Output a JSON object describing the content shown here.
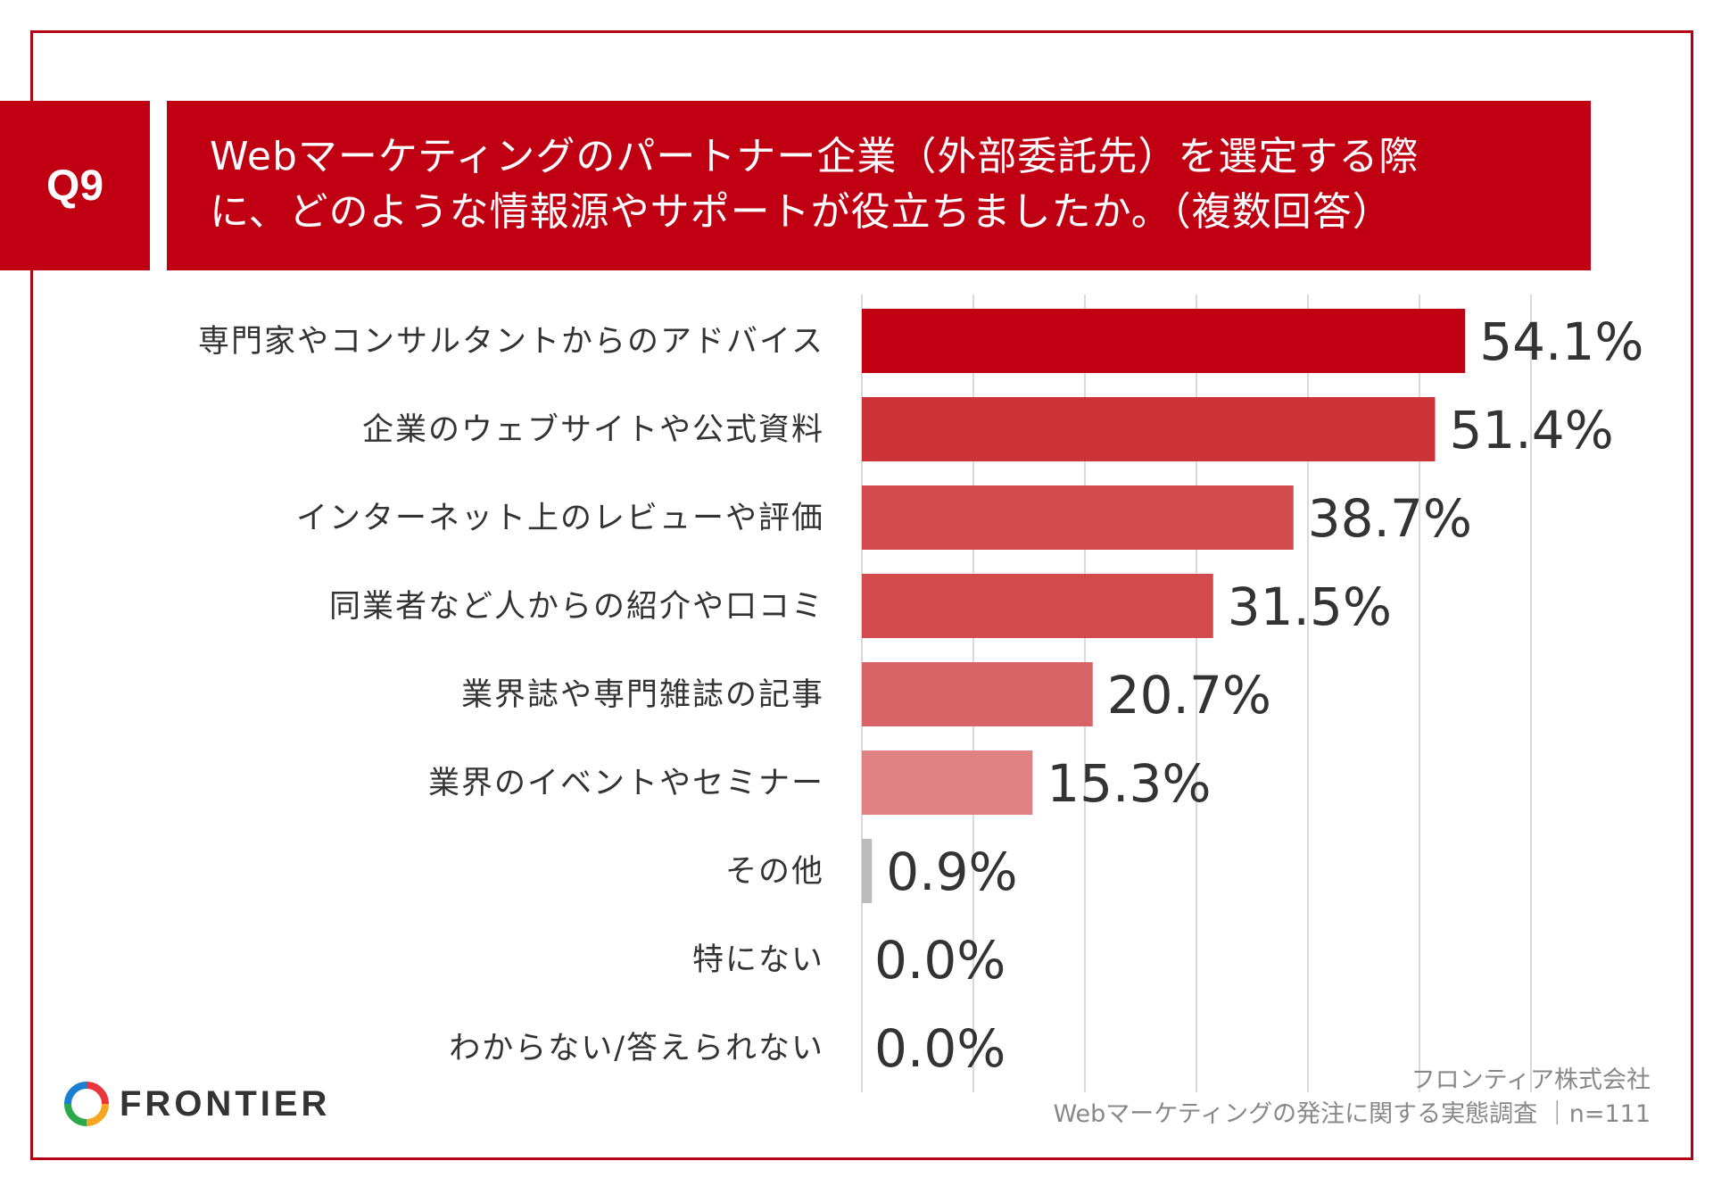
{
  "question": {
    "number": "Q9",
    "text": "Webマーケティングのパートナー企業（外部委託先）を選定する際\nに、どのような情報源やサポートが役立ちましたか。（複数回答）"
  },
  "colors": {
    "brand_red": "#c00012",
    "frame": "#b40012",
    "other_bar": "#bbbbbb"
  },
  "chart_data": {
    "type": "bar",
    "orientation": "horizontal",
    "categories": [
      "専門家やコンサルタントからのアドバイス",
      "企業のウェブサイトや公式資料",
      "インターネット上のレビューや評価",
      "同業者など人からの紹介や口コミ",
      "業界誌や専門雑誌の記事",
      "業界のイベントやセミナー",
      "その他",
      "特にない",
      "わからない/答えられない"
    ],
    "values": [
      54.1,
      51.4,
      38.7,
      31.5,
      20.7,
      15.3,
      0.9,
      0.0,
      0.0
    ],
    "value_labels": [
      "54.1%",
      "51.4%",
      "38.7%",
      "31.5%",
      "20.7%",
      "15.3%",
      "0.9%",
      "0.0%",
      "0.0%"
    ],
    "bar_colors": [
      "#c00012",
      "#cc3336",
      "#d34a4d",
      "#d34a4d",
      "#d96467",
      "#e08183",
      "#bbbbbb",
      "#bbbbbb",
      "#bbbbbb"
    ],
    "xlim": [
      0,
      60
    ],
    "grid": true,
    "grid_step": 10
  },
  "footer": {
    "logo_text": "FRONTIER",
    "company": "フロンティア株式会社",
    "survey": "Webマーケティングの発注に関する実態調査 ｜n=111"
  }
}
